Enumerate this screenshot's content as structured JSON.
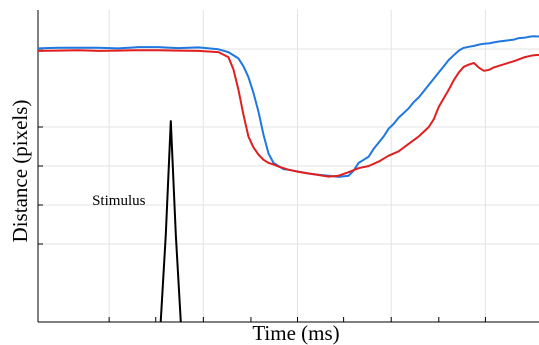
{
  "chart_data": {
    "type": "line",
    "xlabel": "Time (ms)",
    "ylabel": "Distance (pixels)",
    "title": "",
    "grid": true,
    "tick_labels_shown": false,
    "xlim": [
      0,
      100
    ],
    "ylim": [
      0,
      100
    ],
    "annotations": [
      {
        "text": "Stimulus",
        "x": 10.8,
        "y": 37.5
      }
    ],
    "series": [
      {
        "color": "#1f77e0",
        "x": [
          0,
          4,
          8,
          12,
          16,
          20,
          24,
          28,
          32,
          36,
          38,
          40,
          41,
          42,
          43,
          44,
          45,
          46,
          47,
          48,
          49,
          50,
          51,
          52,
          54,
          56,
          58,
          60,
          62,
          63,
          64,
          65,
          66,
          67,
          68,
          69,
          70,
          71,
          72,
          73,
          74,
          75,
          76,
          77,
          78,
          79,
          80,
          81,
          82,
          83,
          84,
          85,
          86,
          87,
          88,
          89,
          90,
          91,
          92,
          93,
          94,
          95,
          96,
          97,
          98,
          99,
          100
        ],
        "y": [
          87.7,
          87.9,
          87.9,
          87.9,
          87.7,
          88.1,
          88.1,
          87.8,
          88.0,
          87.4,
          86.5,
          84.5,
          82.0,
          78.5,
          73.5,
          67.5,
          60.0,
          54.0,
          51.0,
          50.0,
          49.0,
          48.8,
          48.5,
          48.2,
          47.6,
          47.2,
          46.9,
          46.5,
          46.9,
          48.5,
          51.0,
          52.0,
          53.0,
          55.5,
          57.5,
          59.5,
          62.0,
          63.5,
          65.5,
          67.0,
          68.5,
          70.5,
          72.0,
          74.0,
          76.0,
          78.0,
          80.0,
          82.0,
          84.0,
          85.5,
          87.0,
          87.9,
          88.2,
          88.5,
          88.9,
          89.2,
          89.3,
          89.6,
          89.9,
          90.1,
          90.3,
          90.5,
          91.0,
          91.1,
          91.4,
          91.6,
          91.5
        ]
      },
      {
        "color": "#e02020",
        "x": [
          0,
          4,
          8,
          12,
          16,
          20,
          24,
          28,
          32,
          36,
          38,
          39,
          40,
          41,
          42,
          43,
          44,
          45,
          46,
          47,
          48,
          50,
          52,
          54,
          56,
          58,
          60,
          62,
          64,
          66,
          68,
          70,
          72,
          74,
          76,
          78,
          79,
          80,
          82,
          83,
          84,
          85,
          86,
          87,
          88,
          89,
          90,
          91,
          92,
          93,
          94,
          95,
          96,
          97,
          98,
          99,
          100
        ],
        "y": [
          86.9,
          87.0,
          87.1,
          86.9,
          87.0,
          87.1,
          87.1,
          87.0,
          86.9,
          86.5,
          84.9,
          81.0,
          74.5,
          66.5,
          59.5,
          56.0,
          53.7,
          52.0,
          51.0,
          50.5,
          49.8,
          48.8,
          48.1,
          47.6,
          47.1,
          46.6,
          46.9,
          48.0,
          49.3,
          50.0,
          51.4,
          53.3,
          54.7,
          57.1,
          59.5,
          62.5,
          65.0,
          69.0,
          74.5,
          77.5,
          80.0,
          81.8,
          82.5,
          83.0,
          81.5,
          80.5,
          80.8,
          81.6,
          82.1,
          82.6,
          83.1,
          83.6,
          84.2,
          84.8,
          85.2,
          85.5,
          85.6
        ]
      },
      {
        "color": "#000000",
        "x": [
          24.5,
          25.5,
          26.5,
          27.5,
          28.5
        ],
        "y": [
          0,
          28.0,
          64.4,
          28.0,
          0
        ]
      }
    ]
  }
}
